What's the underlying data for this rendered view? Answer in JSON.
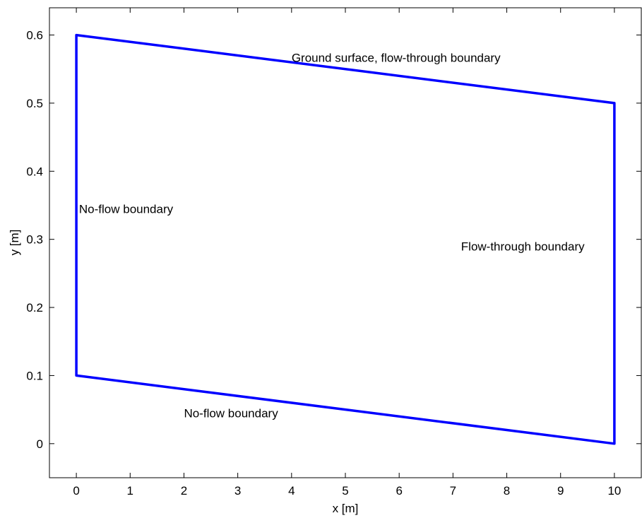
{
  "chart_data": {
    "type": "line",
    "xlabel": "x [m]",
    "ylabel": "y [m]",
    "xlim": [
      -0.5,
      10.5
    ],
    "ylim": [
      -0.05,
      0.64
    ],
    "xticks": [
      0,
      1,
      2,
      3,
      4,
      5,
      6,
      7,
      8,
      9,
      10
    ],
    "yticks": [
      0,
      0.1,
      0.2,
      0.3,
      0.4,
      0.5,
      0.6
    ],
    "xtick_labels": [
      "0",
      "1",
      "2",
      "3",
      "4",
      "5",
      "6",
      "7",
      "8",
      "9",
      "10"
    ],
    "ytick_labels": [
      "0",
      "0.1",
      "0.2",
      "0.3",
      "0.4",
      "0.5",
      "0.6"
    ],
    "grid": false,
    "series": [
      {
        "color": "#0000ff",
        "x": [
          0,
          10,
          10,
          0,
          0
        ],
        "y": [
          0.6,
          0.5,
          0.0,
          0.1,
          0.6
        ]
      }
    ],
    "annotations": [
      {
        "text": "Ground surface, flow-through boundary",
        "x": 4.0,
        "y": 0.567
      },
      {
        "text": "No-flow boundary",
        "x": 0.05,
        "y": 0.345
      },
      {
        "text": "Flow-through boundary",
        "x": 7.15,
        "y": 0.29
      },
      {
        "text": "No-flow boundary",
        "x": 2.0,
        "y": 0.045
      }
    ]
  }
}
